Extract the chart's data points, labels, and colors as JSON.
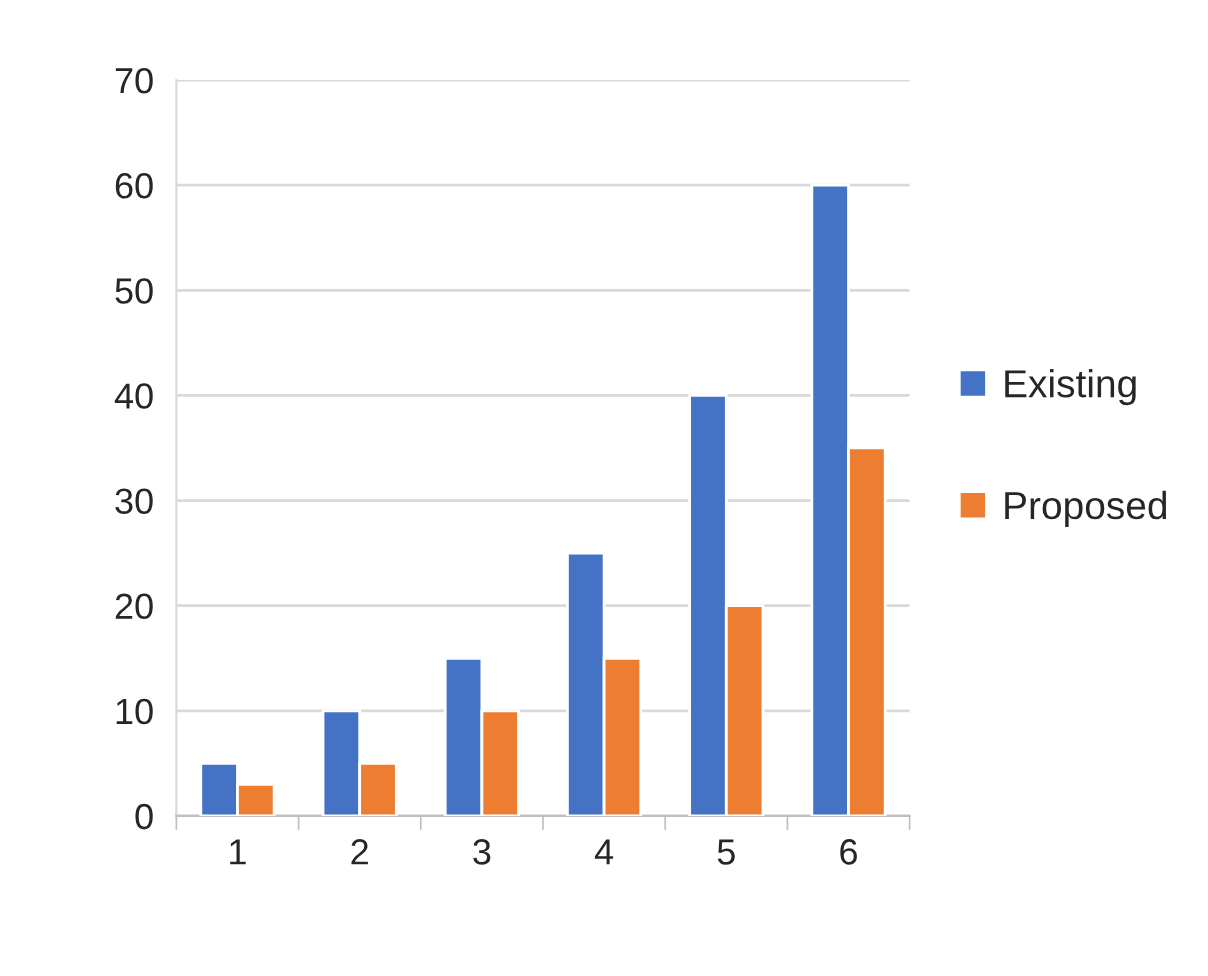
{
  "chart_data": {
    "type": "bar",
    "categories": [
      "1",
      "2",
      "3",
      "4",
      "5",
      "6"
    ],
    "series": [
      {
        "name": "Existing",
        "color": "#4472c4",
        "values": [
          5,
          10,
          15,
          25,
          40,
          60
        ]
      },
      {
        "name": "Proposed",
        "color": "#ed7d31",
        "values": [
          3,
          5,
          10,
          15,
          20,
          35
        ]
      }
    ],
    "ylim": [
      0,
      70
    ],
    "yticks": [
      0,
      10,
      20,
      30,
      40,
      50,
      60,
      70
    ],
    "grid": "y",
    "legend": "right"
  }
}
